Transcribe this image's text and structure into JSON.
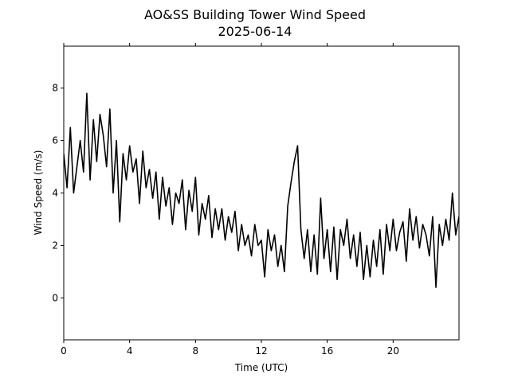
{
  "chart_data": {
    "type": "line",
    "title": "AO&SS Building Tower Wind Speed",
    "subtitle": "2025-06-14",
    "x_label": "Time (UTC)",
    "y_label": "Wind Speed (m/s)",
    "xlim": [
      0,
      24
    ],
    "ylim": [
      -1.6,
      9.6
    ],
    "xticks": [
      0,
      4,
      8,
      12,
      16,
      20
    ],
    "yticks": [
      0,
      2,
      4,
      6,
      8
    ],
    "grid": false,
    "series": [
      {
        "name": "Wind Speed",
        "color": "#000000",
        "x": [
          0,
          0.2,
          0.4,
          0.6,
          0.8,
          1,
          1.2,
          1.4,
          1.6,
          1.8,
          2,
          2.2,
          2.4,
          2.6,
          2.8,
          3,
          3.2,
          3.4,
          3.6,
          3.8,
          4,
          4.2,
          4.4,
          4.6,
          4.8,
          5,
          5.2,
          5.4,
          5.6,
          5.8,
          6,
          6.2,
          6.4,
          6.6,
          6.8,
          7,
          7.2,
          7.4,
          7.6,
          7.8,
          8,
          8.2,
          8.4,
          8.6,
          8.8,
          9,
          9.2,
          9.4,
          9.6,
          9.8,
          10,
          10.2,
          10.4,
          10.6,
          10.8,
          11,
          11.2,
          11.4,
          11.6,
          11.8,
          12,
          12.2,
          12.4,
          12.6,
          12.8,
          13,
          13.2,
          13.4,
          13.6,
          13.8,
          14,
          14.2,
          14.4,
          14.6,
          14.8,
          15,
          15.2,
          15.4,
          15.6,
          15.8,
          16,
          16.2,
          16.4,
          16.6,
          16.8,
          17,
          17.2,
          17.4,
          17.6,
          17.8,
          18,
          18.2,
          18.4,
          18.6,
          18.8,
          19,
          19.2,
          19.4,
          19.6,
          19.8,
          20,
          20.2,
          20.4,
          20.6,
          20.8,
          21,
          21.2,
          21.4,
          21.6,
          21.8,
          22,
          22.2,
          22.4,
          22.6,
          22.8,
          23,
          23.2,
          23.4,
          23.6,
          23.8,
          24
        ],
        "values": [
          5.5,
          4.2,
          6.5,
          4.0,
          5.0,
          6.0,
          4.8,
          7.8,
          4.5,
          6.8,
          5.2,
          7.0,
          6.2,
          5.0,
          7.2,
          4.0,
          6.0,
          2.9,
          5.5,
          4.5,
          5.8,
          4.8,
          5.3,
          3.6,
          5.6,
          4.2,
          4.9,
          3.8,
          4.8,
          3.0,
          4.6,
          3.5,
          4.2,
          2.8,
          4.0,
          3.6,
          4.5,
          2.6,
          4.1,
          3.3,
          4.6,
          2.4,
          3.6,
          3.0,
          3.9,
          2.3,
          3.4,
          2.6,
          3.4,
          2.2,
          3.1,
          2.5,
          3.3,
          1.8,
          2.8,
          2.0,
          2.4,
          1.6,
          2.8,
          2.0,
          2.2,
          0.8,
          2.6,
          1.8,
          2.4,
          1.2,
          2.0,
          1.0,
          3.5,
          4.4,
          5.2,
          5.8,
          2.6,
          1.5,
          2.6,
          1.0,
          2.4,
          0.9,
          3.8,
          1.5,
          2.6,
          1.0,
          2.7,
          0.7,
          2.6,
          2.0,
          3.0,
          1.5,
          2.4,
          1.2,
          2.5,
          0.7,
          2.0,
          0.8,
          2.2,
          1.2,
          2.6,
          0.9,
          2.8,
          1.8,
          3.0,
          1.8,
          2.5,
          2.9,
          1.4,
          3.4,
          2.2,
          3.1,
          1.9,
          2.8,
          2.4,
          1.6,
          3.1,
          0.4,
          2.8,
          2.0,
          3.0,
          2.2,
          4.0,
          2.4,
          3.1
        ]
      }
    ]
  }
}
